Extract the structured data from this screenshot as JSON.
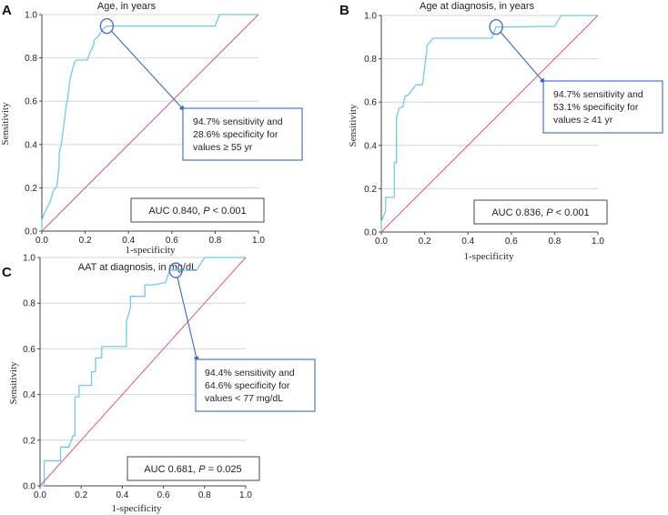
{
  "colors": {
    "roc": "#6ec9ef",
    "reference": "#e0557a",
    "annotation": "#3a68c4"
  },
  "chart_data": [
    {
      "type": "line",
      "panel": "A",
      "title": "Age, in years",
      "xlabel": "1-specificity",
      "ylabel": "Sensitivity",
      "xlim": [
        0,
        1
      ],
      "ylim": [
        0,
        1
      ],
      "xticks": [
        "0.0",
        "0.2",
        "0.4",
        "0.6",
        "0.8",
        "1.0"
      ],
      "yticks": [
        "0.0",
        "0.2",
        "0.4",
        "0.6",
        "0.8",
        "1.0"
      ],
      "grid": "horizontal",
      "series": [
        {
          "name": "ROC",
          "x": [
            0,
            0,
            0.01,
            0.02,
            0.04,
            0.05,
            0.07,
            0.08,
            0.08,
            0.09,
            0.1,
            0.11,
            0.12,
            0.13,
            0.15,
            0.16,
            0.21,
            0.22,
            0.24,
            0.24,
            0.26,
            0.28,
            0.3,
            0.8,
            0.82,
            0.85,
            1.0
          ],
          "y": [
            0,
            0.05,
            0.08,
            0.1,
            0.14,
            0.18,
            0.21,
            0.31,
            0.36,
            0.4,
            0.48,
            0.56,
            0.62,
            0.7,
            0.78,
            0.79,
            0.79,
            0.82,
            0.86,
            0.88,
            0.9,
            0.93,
            0.947,
            0.947,
            1.0,
            1.0,
            1.0
          ]
        },
        {
          "name": "Reference",
          "x": [
            0,
            1
          ],
          "y": [
            0,
            1
          ]
        }
      ],
      "highlight_point": {
        "x": 0.3,
        "y": 0.947
      },
      "annotation": [
        "94.7% sensitivity and",
        "28.6% specificity for",
        "values ≥ 55 yr"
      ],
      "auc_label": "AUC 0.840, ",
      "p_label": "P",
      "p_value": " < 0.001"
    },
    {
      "type": "line",
      "panel": "B",
      "title": "Age at diagnosis, in years",
      "xlabel": "1-specificity",
      "ylabel": "Sensitivity",
      "xlim": [
        0,
        1
      ],
      "ylim": [
        0,
        1
      ],
      "xticks": [
        "0.0",
        "0.2",
        "0.4",
        "0.6",
        "0.8",
        "1.0"
      ],
      "yticks": [
        "0.0",
        "0.2",
        "0.4",
        "0.6",
        "0.8",
        "1.0"
      ],
      "grid": "horizontal",
      "series": [
        {
          "name": "ROC",
          "x": [
            0,
            0,
            0.01,
            0.02,
            0.02,
            0.06,
            0.06,
            0.07,
            0.07,
            0.08,
            0.08,
            0.1,
            0.11,
            0.12,
            0.13,
            0.16,
            0.19,
            0.21,
            0.21,
            0.24,
            0.51,
            0.53,
            0.59,
            0.61,
            0.8,
            0.83,
            1.0
          ],
          "y": [
            0,
            0.05,
            0.07,
            0.1,
            0.16,
            0.16,
            0.32,
            0.32,
            0.53,
            0.56,
            0.57,
            0.58,
            0.63,
            0.63,
            0.64,
            0.68,
            0.68,
            0.84,
            0.86,
            0.895,
            0.895,
            0.947,
            0.947,
            0.947,
            0.95,
            1.0,
            1.0
          ]
        },
        {
          "name": "Reference",
          "x": [
            0,
            1
          ],
          "y": [
            0,
            1
          ]
        }
      ],
      "highlight_point": {
        "x": 0.53,
        "y": 0.947
      },
      "annotation": [
        "94.7% sensitivity and",
        "53.1% specificity for",
        "values ≥ 41 yr"
      ],
      "auc_label": "AUC 0.836, ",
      "p_label": "P",
      "p_value": " < 0.001"
    },
    {
      "type": "line",
      "panel": "C",
      "title": "AAT at diagnosis, in mg/dL",
      "xlabel": "1-specificity",
      "ylabel": "Sensitivity",
      "xlim": [
        0,
        1
      ],
      "ylim": [
        0,
        1
      ],
      "xticks": [
        "0.0",
        "0.2",
        "0.4",
        "0.6",
        "0.8",
        "1.0"
      ],
      "yticks": [
        "0.0",
        "0.2",
        "0.4",
        "0.6",
        "0.8",
        "1.0"
      ],
      "grid": "horizontal",
      "series": [
        {
          "name": "ROC",
          "x": [
            0,
            0.02,
            0.02,
            0.1,
            0.1,
            0.14,
            0.16,
            0.17,
            0.17,
            0.19,
            0.19,
            0.25,
            0.25,
            0.27,
            0.27,
            0.3,
            0.3,
            0.32,
            0.32,
            0.37,
            0.42,
            0.42,
            0.44,
            0.44,
            0.46,
            0.51,
            0.51,
            0.55,
            0.61,
            0.63,
            0.66,
            0.76,
            0.8,
            1.0
          ],
          "y": [
            0,
            0,
            0.11,
            0.11,
            0.17,
            0.17,
            0.22,
            0.22,
            0.39,
            0.39,
            0.44,
            0.44,
            0.5,
            0.5,
            0.56,
            0.56,
            0.61,
            0.61,
            0.61,
            0.61,
            0.61,
            0.72,
            0.78,
            0.83,
            0.83,
            0.83,
            0.88,
            0.88,
            0.89,
            0.944,
            0.944,
            0.944,
            1.0,
            1.0
          ]
        },
        {
          "name": "Reference",
          "x": [
            0,
            1
          ],
          "y": [
            0,
            1
          ]
        }
      ],
      "highlight_point": {
        "x": 0.66,
        "y": 0.944
      },
      "annotation": [
        "94.4% sensitivity and",
        "64.6% specificity for",
        "values < 77 mg/dL"
      ],
      "auc_label": "AUC 0.681, ",
      "p_label": "P",
      "p_value": " = 0.025"
    }
  ]
}
